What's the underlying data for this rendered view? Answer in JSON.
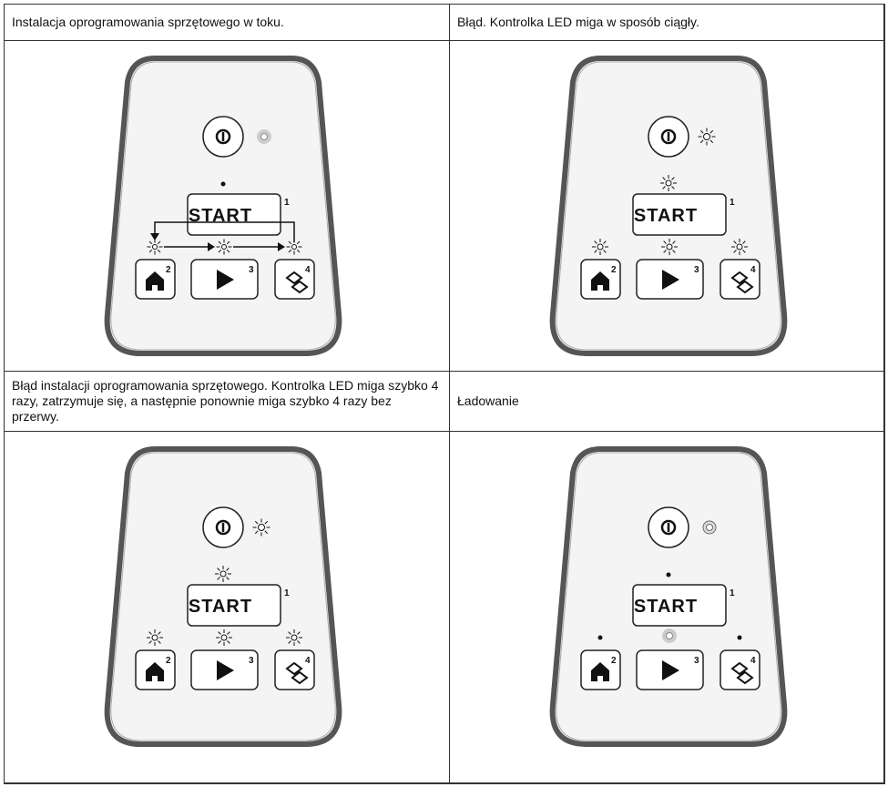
{
  "cells": [
    {
      "caption": "Instalacja oprogramowania sprzętowego w toku."
    },
    {
      "caption": "Błąd. Kontrolka LED miga w sposób ciągły."
    },
    {
      "caption": "Błąd instalacji oprogramowania sprzętowego. Kontrolka LED miga szybko 4 razy, zatrzymuje się, a następnie ponownie miga szybko 4 razy bez przerwy."
    },
    {
      "caption": "Ładowanie"
    }
  ],
  "keypad": {
    "start": "START",
    "labels": [
      "1",
      "2",
      "3",
      "4"
    ]
  }
}
